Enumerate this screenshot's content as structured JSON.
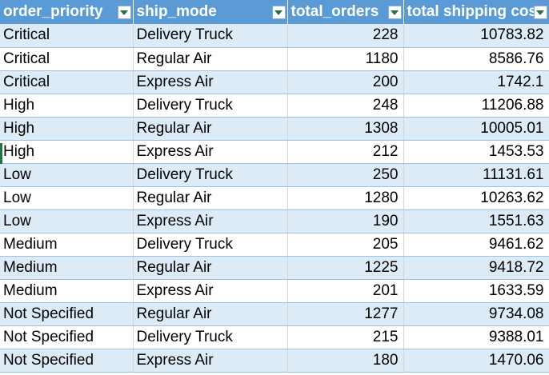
{
  "headers": [
    {
      "label": "order_priority"
    },
    {
      "label": "ship_mode"
    },
    {
      "label": "total_orders"
    },
    {
      "label": "total shipping cos"
    }
  ],
  "rows": [
    [
      "Critical",
      "Delivery Truck",
      "228",
      "10783.82"
    ],
    [
      "Critical",
      "Regular Air",
      "1180",
      "8586.76"
    ],
    [
      "Critical",
      "Express Air",
      "200",
      "1742.1"
    ],
    [
      "High",
      "Delivery Truck",
      "248",
      "11206.88"
    ],
    [
      "High",
      "Regular Air",
      "1308",
      "10005.01"
    ],
    [
      "High",
      "Express Air",
      "212",
      "1453.53"
    ],
    [
      "Low",
      "Delivery Truck",
      "250",
      "11131.61"
    ],
    [
      "Low",
      "Regular Air",
      "1280",
      "10263.62"
    ],
    [
      "Low",
      "Express Air",
      "190",
      "1551.63"
    ],
    [
      "Medium",
      "Delivery Truck",
      "205",
      "9461.62"
    ],
    [
      "Medium",
      "Regular Air",
      "1225",
      "9418.72"
    ],
    [
      "Medium",
      "Express Air",
      "201",
      "1633.59"
    ],
    [
      "Not Specified",
      "Regular Air",
      "1277",
      "9734.08"
    ],
    [
      "Not Specified",
      "Delivery Truck",
      "215",
      "9388.01"
    ],
    [
      "Not Specified",
      "Express Air",
      "180",
      "1470.06"
    ]
  ],
  "colors": {
    "header_bg": "#5b9bd5",
    "band": "#ddebf7",
    "filter_arrow": "#217346"
  }
}
